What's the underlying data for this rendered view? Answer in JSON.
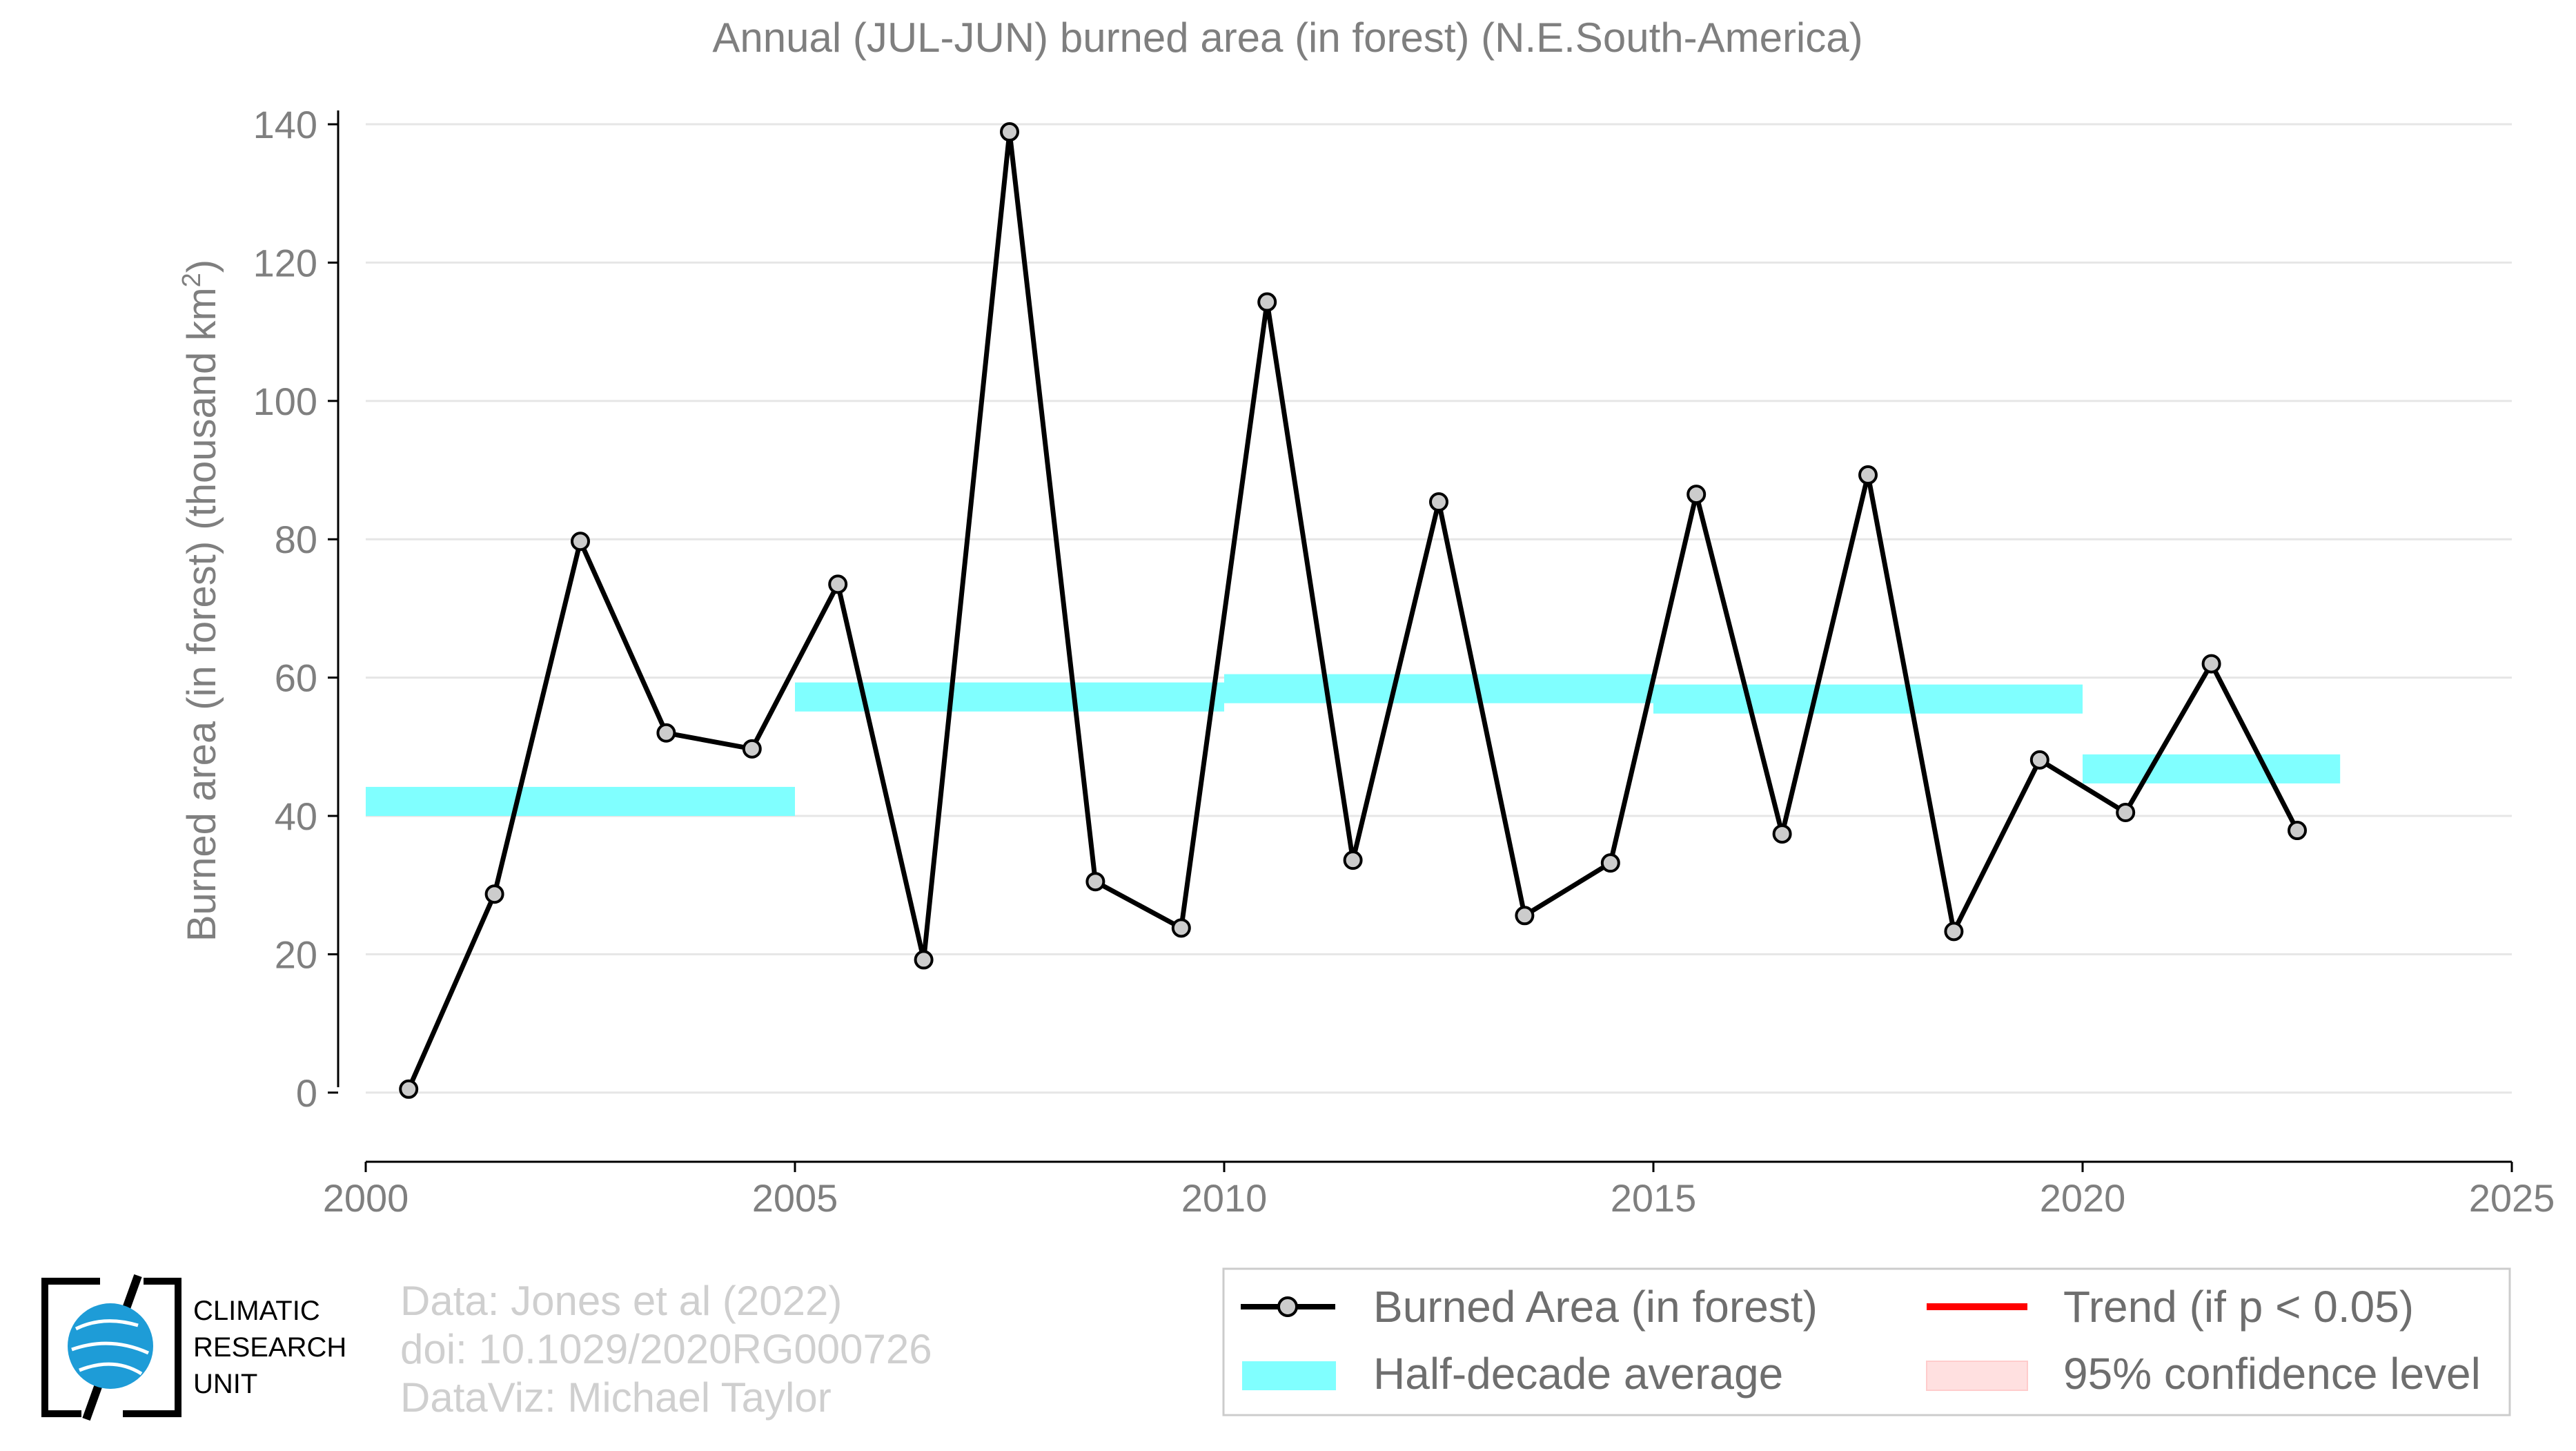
{
  "chart_data": {
    "type": "line",
    "title": "Annual (JUL-JUN) burned area (in forest) (N.E.South-America)",
    "ylabel_main": "Burned area (in forest) (thousand km",
    "ylabel_sup": "2",
    "ylabel_close": ")",
    "xlim": [
      2000,
      2025
    ],
    "ylim": [
      -10,
      142
    ],
    "x_ticks": [
      2000,
      2005,
      2010,
      2015,
      2020,
      2025
    ],
    "y_ticks": [
      0,
      20,
      40,
      60,
      80,
      100,
      120,
      140
    ],
    "grid": "horizontal",
    "series": [
      {
        "name": "Burned Area (in forest)",
        "x": [
          2000.5,
          2001.5,
          2002.5,
          2003.5,
          2004.5,
          2005.5,
          2006.5,
          2007.5,
          2008.5,
          2009.5,
          2010.5,
          2011.5,
          2012.5,
          2013.5,
          2014.5,
          2015.5,
          2016.5,
          2017.5,
          2018.5,
          2019.5,
          2020.5,
          2021.5,
          2022.5
        ],
        "values": [
          0.5,
          28.7,
          79.7,
          52.0,
          49.7,
          73.5,
          19.2,
          138.9,
          30.5,
          23.8,
          114.3,
          33.6,
          85.4,
          25.6,
          33.2,
          86.5,
          37.4,
          89.3,
          23.3,
          48.1,
          40.5,
          62.0,
          37.9
        ]
      },
      {
        "name": "Half-decade average",
        "segments": [
          {
            "x_start": 2000,
            "x_end": 2005,
            "value": 42.1
          },
          {
            "x_start": 2005,
            "x_end": 2010,
            "value": 57.2
          },
          {
            "x_start": 2010,
            "x_end": 2015,
            "value": 58.4
          },
          {
            "x_start": 2015,
            "x_end": 2020,
            "value": 56.9
          },
          {
            "x_start": 2020,
            "x_end": 2023,
            "value": 46.8
          }
        ]
      }
    ],
    "legend": {
      "placement": "bottom-right",
      "items": [
        {
          "label": "Burned Area (in forest)",
          "kind": "line-marker",
          "color": "#000000"
        },
        {
          "label": "Trend (if p < 0.05)",
          "kind": "line",
          "color": "#ff0000"
        },
        {
          "label": "Half-decade average",
          "kind": "band",
          "color": "#80ffff"
        },
        {
          "label": "95% confidence level",
          "kind": "band",
          "color": "#ffe0e0"
        }
      ]
    },
    "credits": [
      "Data: Jones et al (2022)",
      "doi: 10.1029/2020RG000726",
      "DataViz: Michael Taylor"
    ],
    "logo_text": [
      "CLIMATIC",
      "RESEARCH",
      "UNIT"
    ]
  },
  "colors": {
    "series_line": "#000000",
    "marker_fill": "#cccccc",
    "half_decade_band": "#80ffff",
    "trend": "#ff0000",
    "confidence": "#ffe0e0",
    "text_gray": "#7f7f7f",
    "credit_gray": "#cfcfcf",
    "grid": "#e6e6e6",
    "logo_globe": "#1e9cd7"
  }
}
